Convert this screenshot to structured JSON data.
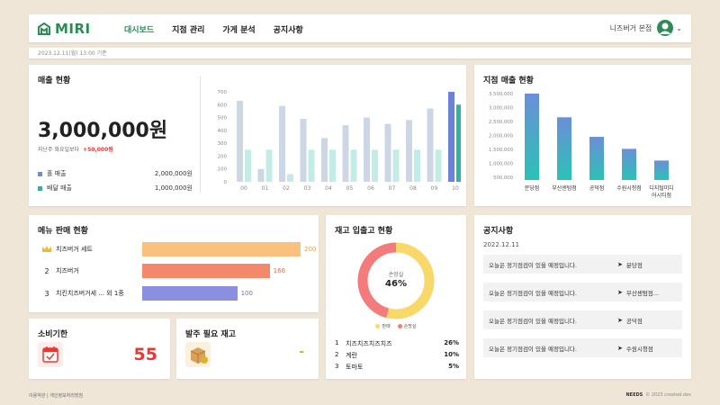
{
  "header": {
    "logo": "MIRI",
    "nav": [
      "대시보드",
      "지점 관리",
      "가게 분석",
      "공지사항"
    ],
    "active_nav": "대시보드",
    "user": "니즈버거 본점"
  },
  "date_caption": "2023.12.11(월) 13:00 기준",
  "sales": {
    "title": "매출 현황",
    "total": "3,000,000원",
    "compare_label": "지난주 화요일보다",
    "compare_value": "+50,000원",
    "legend": [
      {
        "label": "홀 매출",
        "value": "2,000,000원",
        "color": "#6f8fc7"
      },
      {
        "label": "배달 매출",
        "value": "1,000,000원",
        "color": "#2bb5a5"
      }
    ]
  },
  "branch": {
    "title": "지점 매출 현황"
  },
  "menu": {
    "title": "메뉴 판매 현황",
    "items": [
      {
        "rank": "",
        "name": "치즈버거 세트",
        "value": "200",
        "fraction": 1.0,
        "color": "#f9c07e",
        "vcolor": "#f0a040"
      },
      {
        "rank": "2",
        "name": "치즈버거",
        "value": "166",
        "fraction": 0.805,
        "color": "#f4886a",
        "vcolor": "#ef6a45"
      },
      {
        "rank": "3",
        "name": "치킨치즈버거세 ... 외 1종",
        "value": "100",
        "fraction": 0.6,
        "color": "#8a8fe0",
        "vcolor": "#6a6fd0"
      }
    ]
  },
  "expiry": {
    "title": "소비기한",
    "value": "55"
  },
  "order": {
    "title": "발주 필요 재고",
    "value": "-"
  },
  "stock": {
    "title": "재고 입출고 현황",
    "center_label": "손망실",
    "center_value": "46%",
    "legend": [
      {
        "label": "판매",
        "color": "#f9d86a"
      },
      {
        "label": "손망실",
        "color": "#f47b7b"
      }
    ],
    "items": [
      {
        "rank": "1",
        "name": "치즈치즈치즈치즈",
        "value": "26%"
      },
      {
        "rank": "2",
        "name": "계란",
        "value": "10%"
      },
      {
        "rank": "3",
        "name": "토마토",
        "value": "5%"
      }
    ]
  },
  "notice": {
    "title": "공지사항",
    "date": "2022.12.11",
    "items": [
      {
        "text": "오늘은 정기점검이 있을 예정입니다.",
        "branch": "분당점"
      },
      {
        "text": "오늘은 정기점검이 있을 예정입니다.",
        "branch": "부산센텀점..."
      },
      {
        "text": "오늘은 정기점검이 있을 예정입니다.",
        "branch": "공덕점"
      },
      {
        "text": "오늘은 정기점검이 있을 예정입니다.",
        "branch": "수원시청점"
      }
    ]
  },
  "footer": {
    "terms": "이용약관",
    "privacy": "개인정보처리방침",
    "brand": "NEEDS",
    "copyright": "© 2023 created.dev"
  },
  "chart_data": [
    {
      "type": "bar",
      "categories": [
        "00",
        "01",
        "02",
        "03",
        "04",
        "05",
        "06",
        "07",
        "08",
        "09",
        "10"
      ],
      "series": [
        {
          "values": [
            630,
            100,
            590,
            490,
            340,
            440,
            500,
            450,
            480,
            570,
            700
          ]
        },
        {
          "values": [
            250,
            250,
            60,
            250,
            250,
            250,
            250,
            250,
            250,
            250,
            600
          ]
        }
      ],
      "yticks": [
        "0",
        "100",
        "200",
        "300",
        "400",
        "500",
        "600",
        "700"
      ],
      "ylim": [
        0,
        700
      ],
      "grid": false
    },
    {
      "type": "bar",
      "categories": [
        "분당점",
        "부산센텀점",
        "공덕점",
        "수원시청점",
        "디지털미디어시티점"
      ],
      "values": [
        3500000,
        2650000,
        1950000,
        1520000,
        1100000
      ],
      "yticks": [
        "500,000",
        "1,000,000",
        "1,500,000",
        "2,000,000",
        "2,500,000",
        "3,000,000",
        "3,500,000"
      ],
      "ylim": [
        500000,
        3500000
      ],
      "grid": false
    },
    {
      "type": "pie",
      "labels": [
        "판매",
        "손망실"
      ],
      "values": [
        54,
        46
      ]
    }
  ]
}
